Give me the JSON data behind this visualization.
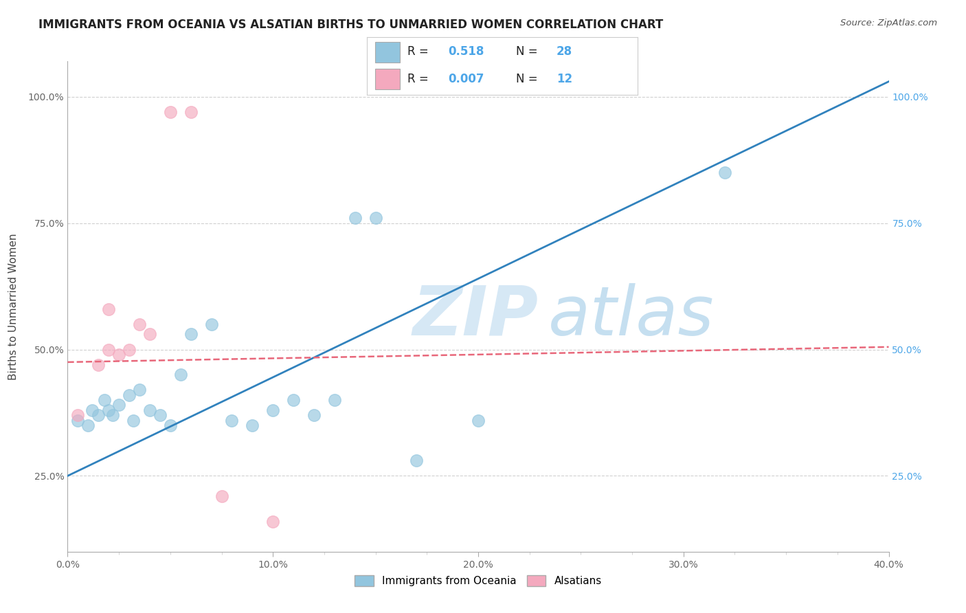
{
  "title": "IMMIGRANTS FROM OCEANIA VS ALSATIAN BIRTHS TO UNMARRIED WOMEN CORRELATION CHART",
  "source": "Source: ZipAtlas.com",
  "ylabel": "Births to Unmarried Women",
  "x_tick_labels": [
    "0.0%",
    "10.0%",
    "20.0%",
    "30.0%",
    "40.0%"
  ],
  "x_tick_values": [
    0.0,
    10.0,
    20.0,
    30.0,
    40.0
  ],
  "x_minor_ticks": [
    2.5,
    5.0,
    7.5,
    12.5,
    15.0,
    17.5,
    22.5,
    25.0,
    27.5,
    32.5,
    35.0,
    37.5
  ],
  "y_tick_labels": [
    "25.0%",
    "50.0%",
    "75.0%",
    "100.0%"
  ],
  "y_tick_values": [
    25.0,
    50.0,
    75.0,
    100.0
  ],
  "xlim": [
    0.0,
    40.0
  ],
  "ylim": [
    10.0,
    107.0
  ],
  "blue_R": "0.518",
  "blue_N": "28",
  "pink_R": "0.007",
  "pink_N": "12",
  "blue_color": "#92c5de",
  "pink_color": "#f4a9be",
  "blue_line_color": "#3182bd",
  "pink_line_color": "#e8677a",
  "legend_blue_label": "Immigrants from Oceania",
  "legend_pink_label": "Alsatians",
  "blue_scatter_x": [
    0.5,
    1.0,
    1.2,
    1.5,
    1.8,
    2.0,
    2.2,
    2.5,
    3.0,
    3.2,
    3.5,
    4.0,
    4.5,
    5.0,
    5.5,
    6.0,
    7.0,
    8.0,
    9.0,
    10.0,
    11.0,
    12.0,
    13.0,
    14.0,
    15.0,
    17.0,
    20.0,
    32.0
  ],
  "blue_scatter_y": [
    36.0,
    35.0,
    38.0,
    37.0,
    40.0,
    38.0,
    37.0,
    39.0,
    41.0,
    36.0,
    42.0,
    38.0,
    37.0,
    35.0,
    45.0,
    53.0,
    55.0,
    36.0,
    35.0,
    38.0,
    40.0,
    37.0,
    40.0,
    76.0,
    76.0,
    28.0,
    36.0,
    85.0
  ],
  "pink_scatter_x": [
    0.5,
    1.5,
    2.0,
    2.5,
    3.0,
    3.5,
    4.0,
    5.0,
    6.0,
    7.5,
    10.0,
    2.0
  ],
  "pink_scatter_y": [
    37.0,
    47.0,
    50.0,
    49.0,
    50.0,
    55.0,
    53.0,
    97.0,
    97.0,
    21.0,
    16.0,
    58.0
  ],
  "blue_line_x": [
    0.0,
    40.0
  ],
  "blue_line_y": [
    25.0,
    103.0
  ],
  "pink_line_x": [
    0.0,
    40.0
  ],
  "pink_line_y": [
    47.5,
    50.5
  ],
  "title_fontsize": 12,
  "background_color": "#ffffff",
  "grid_color": "#d0d0d0",
  "right_tick_color": "#4da6e8"
}
